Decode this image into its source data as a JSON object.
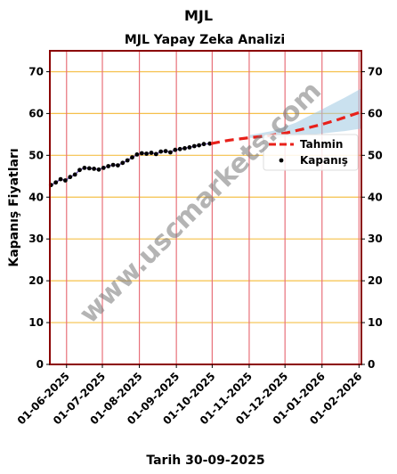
{
  "chart_data": {
    "type": "line",
    "title": "MJL",
    "subtitle": "MJL Yapay Zeka Analizi",
    "xlabel": "Tarih 30-09-2025",
    "ylabel": "Kapanış Fiyatları",
    "ylim": [
      0,
      75
    ],
    "yticks": [
      0,
      10,
      20,
      30,
      40,
      50,
      60,
      70
    ],
    "xlim": [
      "2025-05-18",
      "2026-02-03"
    ],
    "xticks": [
      "01-06-2025",
      "01-07-2025",
      "01-08-2025",
      "01-09-2025",
      "01-10-2025",
      "01-11-2025",
      "01-12-2025",
      "01-01-2026",
      "01-02-2026"
    ],
    "xtick_dates": [
      "2025-06-01",
      "2025-07-01",
      "2025-08-01",
      "2025-09-01",
      "2025-10-01",
      "2025-11-01",
      "2025-12-01",
      "2026-01-01",
      "2026-02-01"
    ],
    "grid": true,
    "legend_position": "right",
    "series": [
      {
        "name": "Tahmin",
        "style": "dashed",
        "color": "#e8201a",
        "points": [
          [
            "2025-09-30",
            52.8
          ],
          [
            "2025-10-15",
            53.6
          ],
          [
            "2025-11-01",
            54.2
          ],
          [
            "2025-11-15",
            54.6
          ],
          [
            "2025-12-01",
            55.3
          ],
          [
            "2025-12-15",
            56.2
          ],
          [
            "2026-01-01",
            57.4
          ],
          [
            "2026-01-15",
            58.6
          ],
          [
            "2026-02-03",
            60.4
          ]
        ]
      },
      {
        "name": "Kapanış",
        "style": "points",
        "color": "#000000",
        "points": [
          [
            "2025-05-19",
            42.9
          ],
          [
            "2025-05-23",
            43.5
          ],
          [
            "2025-05-27",
            44.3
          ],
          [
            "2025-05-31",
            44.0
          ],
          [
            "2025-06-04",
            44.8
          ],
          [
            "2025-06-08",
            45.4
          ],
          [
            "2025-06-12",
            46.5
          ],
          [
            "2025-06-16",
            47.0
          ],
          [
            "2025-06-20",
            46.9
          ],
          [
            "2025-06-24",
            46.8
          ],
          [
            "2025-06-28",
            46.6
          ],
          [
            "2025-07-02",
            47.0
          ],
          [
            "2025-07-06",
            47.4
          ],
          [
            "2025-07-10",
            47.7
          ],
          [
            "2025-07-14",
            47.6
          ],
          [
            "2025-07-18",
            48.2
          ],
          [
            "2025-07-22",
            48.8
          ],
          [
            "2025-07-26",
            49.5
          ],
          [
            "2025-07-30",
            50.2
          ],
          [
            "2025-08-03",
            50.5
          ],
          [
            "2025-08-07",
            50.4
          ],
          [
            "2025-08-11",
            50.6
          ],
          [
            "2025-08-15",
            50.3
          ],
          [
            "2025-08-19",
            50.9
          ],
          [
            "2025-08-23",
            51.0
          ],
          [
            "2025-08-27",
            50.7
          ],
          [
            "2025-08-31",
            51.3
          ],
          [
            "2025-09-04",
            51.5
          ],
          [
            "2025-09-08",
            51.7
          ],
          [
            "2025-09-12",
            51.9
          ],
          [
            "2025-09-16",
            52.2
          ],
          [
            "2025-09-20",
            52.4
          ],
          [
            "2025-09-24",
            52.7
          ],
          [
            "2025-09-29",
            52.8
          ]
        ]
      }
    ],
    "forecast_band": {
      "color": "#9ec9e2",
      "points": [
        [
          "2025-11-01",
          54.2,
          54.8
        ],
        [
          "2025-11-20",
          54.0,
          55.8
        ],
        [
          "2025-12-10",
          54.6,
          57.8
        ],
        [
          "2026-01-01",
          55.2,
          61.0
        ],
        [
          "2026-01-20",
          55.8,
          63.8
        ],
        [
          "2026-02-03",
          56.4,
          66.0
        ]
      ]
    },
    "colors": {
      "frame": "#8b0000",
      "hgrid": "#f5c04a",
      "vgrid": "#e8707a",
      "history_line": "#7a5fb8"
    },
    "watermark": "www.uscmarkets.com"
  }
}
